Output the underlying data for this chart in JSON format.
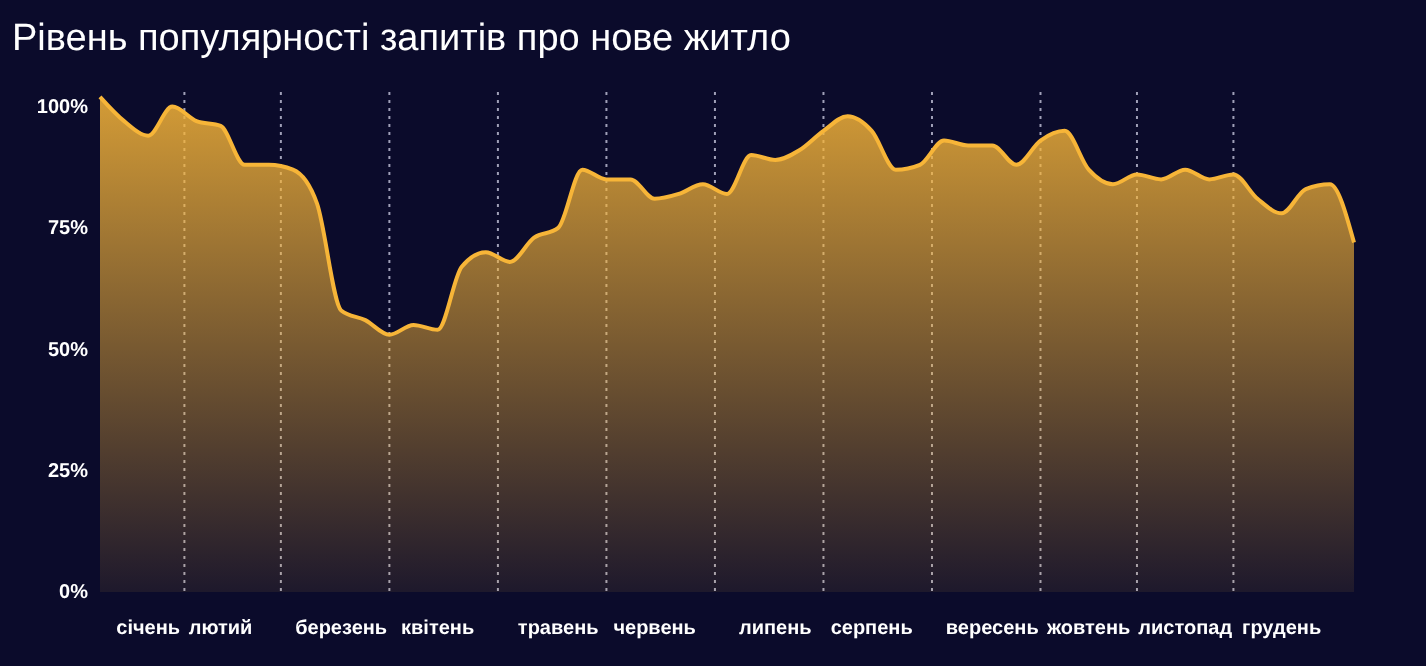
{
  "chart_data": {
    "type": "area",
    "title": "Рівень популярності запитів про нове житло",
    "categories": [
      null,
      null,
      "січень",
      null,
      null,
      "лютий",
      null,
      null,
      null,
      null,
      "березень",
      null,
      null,
      null,
      "квітень",
      null,
      null,
      null,
      null,
      "травень",
      null,
      null,
      null,
      "червень",
      null,
      null,
      null,
      null,
      "липень",
      null,
      null,
      null,
      "серпень",
      null,
      null,
      null,
      null,
      "вересень",
      null,
      null,
      null,
      "жовтень",
      null,
      null,
      null,
      "листопад",
      null,
      null,
      null,
      "грудень",
      null,
      null,
      null
    ],
    "series": [
      {
        "color": "#f7b538",
        "values": [
          102,
          97,
          94,
          100,
          97,
          96,
          88,
          88,
          87,
          80,
          58,
          56,
          53,
          55,
          54,
          67,
          70,
          68,
          73,
          75,
          87,
          85,
          85,
          81,
          82,
          84,
          82,
          90,
          89,
          91,
          95,
          98,
          95,
          87,
          88,
          93,
          92,
          92,
          88,
          93,
          95,
          87,
          84,
          86,
          85,
          87,
          85,
          86,
          81,
          78,
          83,
          84,
          72
        ]
      }
    ],
    "grid": "x",
    "ylim": [
      0,
      103
    ],
    "yticks": [
      {
        "value": 0,
        "label": "0%"
      },
      {
        "value": 25,
        "label": "25%"
      },
      {
        "value": 50,
        "label": "50%"
      },
      {
        "value": 75,
        "label": "75%"
      },
      {
        "value": 100,
        "label": "100%"
      }
    ]
  }
}
